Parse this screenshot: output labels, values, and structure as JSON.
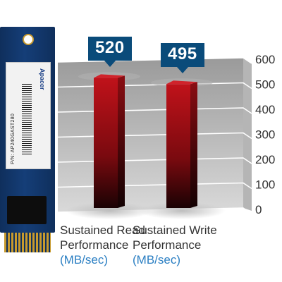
{
  "product_image": {
    "brand": "Apacer",
    "model": "P/N: AP240GAST280"
  },
  "chart_data": {
    "type": "bar",
    "categories": [
      "Sustained Read Performance",
      "Sustained Write Performance"
    ],
    "category_lines": [
      [
        "Sustained Read",
        "Performance"
      ],
      [
        "Sustained Write",
        "Performance"
      ]
    ],
    "unit_label": "(MB/sec)",
    "values": [
      520,
      495
    ],
    "data_labels": [
      "520",
      "495"
    ],
    "ylim": [
      0,
      600
    ],
    "yticks": [
      "0",
      "100",
      "200",
      "300",
      "400",
      "500",
      "600"
    ],
    "grid": true,
    "title": "",
    "xlabel": "",
    "ylabel": "",
    "colors": {
      "bar_top": "#c0121a",
      "bar_bottom": "#1a0204",
      "callout": "#0a4b7a",
      "unit_text": "#2b7fc3"
    }
  }
}
